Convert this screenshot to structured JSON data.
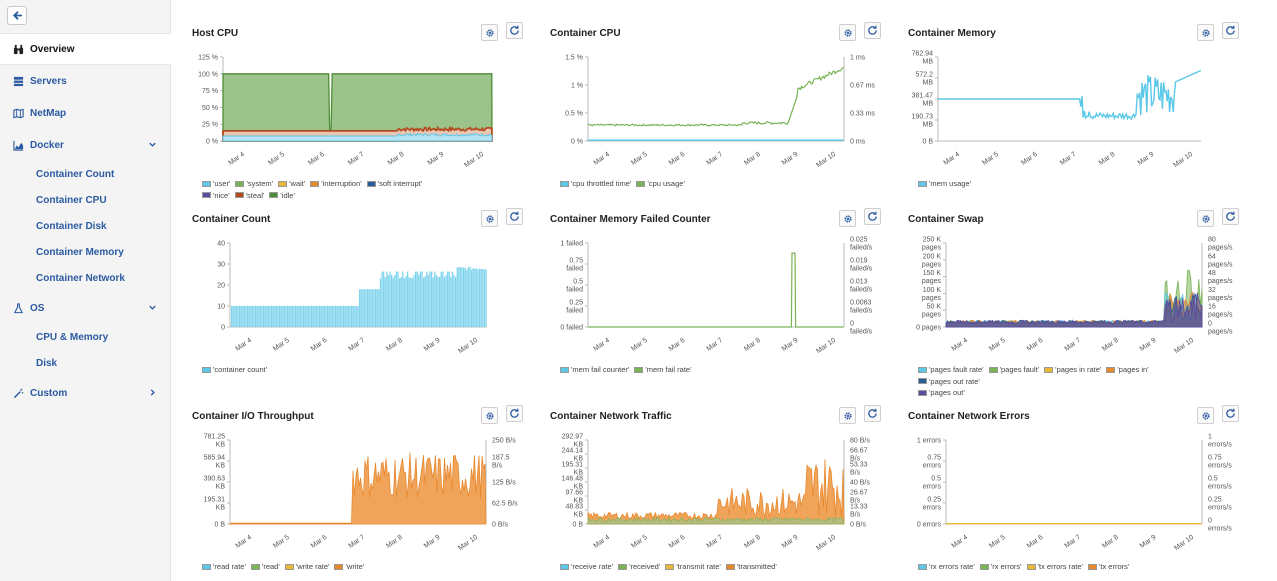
{
  "sidebar": {
    "overview": "Overview",
    "servers": "Servers",
    "netmap": "NetMap",
    "docker": "Docker",
    "docker_items": [
      "Container Count",
      "Container CPU",
      "Container Disk",
      "Container Memory",
      "Container Network"
    ],
    "os": "OS",
    "os_items": [
      "CPU & Memory",
      "Disk"
    ],
    "custom": "Custom"
  },
  "colors": {
    "accent": "#2b5aa0",
    "sky": "#5bc8e8",
    "green": "#5a9e3c",
    "orange": "#e8892e",
    "brown": "#b34a1e"
  },
  "x_ticks": [
    "Mar 4",
    "Mar 5",
    "Mar 6",
    "Mar 7",
    "Mar 8",
    "Mar 9",
    "Mar 10"
  ],
  "panels": [
    {
      "id": "host-cpu",
      "title": "Host CPU",
      "y_left": [
        "125 %",
        "100 %",
        "75 %",
        "50 %",
        "25 %",
        "0 %"
      ],
      "y_right": [],
      "legend": [
        [
          "'user'",
          "'system'",
          "'wait'",
          "'interruption'",
          "'soft interrupt'"
        ],
        [
          "'nice'",
          "'steal'",
          "'idle'"
        ]
      ]
    },
    {
      "id": "container-cpu",
      "title": "Container CPU",
      "y_left": [
        "1.5 %",
        "1 %",
        "0.5 %",
        "0 %"
      ],
      "y_right": [
        "1 ms",
        "0.67 ms",
        "0.33 ms",
        "0 ms"
      ],
      "legend": [
        [
          "'cpu throttled time'",
          "'cpu usage'"
        ]
      ]
    },
    {
      "id": "container-memory",
      "title": "Container Memory",
      "y_left": [
        "762.94\nMB",
        "572.2\nMB",
        "381.47\nMB",
        "190.73\nMB",
        "0 B"
      ],
      "y_right": [],
      "legend": [
        [
          "'mem usage'"
        ]
      ]
    },
    {
      "id": "container-count",
      "title": "Container Count",
      "y_left": [
        "40",
        "30",
        "20",
        "10",
        "0"
      ],
      "y_right": [],
      "legend": [
        [
          "'container count'"
        ]
      ]
    },
    {
      "id": "container-memory-failed",
      "title": "Container Memory Failed Counter",
      "y_left": [
        "1 failed",
        "0.75\nfailed",
        "0.5\nfailed",
        "0.25\nfailed",
        "0 failed"
      ],
      "y_right": [
        "0.025\nfailed/s",
        "0.019\nfailed/s",
        "0.013\nfailed/s",
        "0.0063\nfailed/s",
        "0\nfailed/s"
      ],
      "legend": [
        [
          "'mem fail counter'",
          "'mem fail rate'"
        ]
      ]
    },
    {
      "id": "container-swap",
      "title": "Container Swap",
      "y_left": [
        "250 K\npages",
        "200 K\npages",
        "150 K\npages",
        "100 K\npages",
        "50 K\npages",
        "0 pages"
      ],
      "y_right": [
        "80\npages/s",
        "64\npages/s",
        "48\npages/s",
        "32\npages/s",
        "16\npages/s",
        "0\npages/s"
      ],
      "legend": [
        [
          "'pages fault rate'",
          "'pages fault'",
          "'pages in rate'",
          "'pages in'"
        ],
        [
          "'pages out rate'"
        ],
        [
          "'pages out'"
        ]
      ]
    },
    {
      "id": "container-io",
      "title": "Container I/O Throughput",
      "y_left": [
        "781.25\nKB",
        "585.94\nKB",
        "390.63\nKB",
        "195.31\nKB",
        "0 B"
      ],
      "y_right": [
        "250 B/s",
        "187.5\nB/s",
        "125 B/s",
        "62.5 B/s",
        "0 B/s"
      ],
      "legend": [
        [
          "'read rate'",
          "'read'",
          "'write rate'",
          "'write'"
        ]
      ]
    },
    {
      "id": "container-network-traffic",
      "title": "Container Network Traffic",
      "y_left": [
        "292.97\nKB",
        "244.14\nKB",
        "195.31\nKB",
        "146.48\nKB",
        "97.66\nKB",
        "48.83\nKB",
        "0 B"
      ],
      "y_right": [
        "80 B/s",
        "66.67\nB/s",
        "53.33\nB/s",
        "40 B/s",
        "26.67\nB/s",
        "13.33\nB/s",
        "0 B/s"
      ],
      "legend": [
        [
          "'receive rate'",
          "'received'",
          "'transmit rate'",
          "'transmitted'"
        ]
      ]
    },
    {
      "id": "container-network-errors",
      "title": "Container Network Errors",
      "y_left": [
        "1 errors",
        "0.75\nerrors",
        "0.5\nerrors",
        "0.25\nerrors",
        "0 errors"
      ],
      "y_right": [
        "1\nerrors/s",
        "0.75\nerrors/s",
        "0.5\nerrors/s",
        "0.25\nerrors/s",
        "0\nerrors/s"
      ],
      "legend": [
        [
          "'rx errors rate'",
          "'rx errors'",
          "'tx errors rate'",
          "'tx errors'"
        ]
      ]
    }
  ]
}
